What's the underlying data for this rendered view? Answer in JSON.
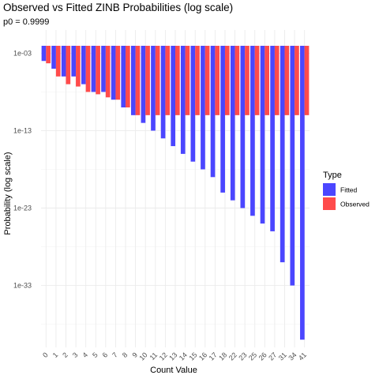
{
  "chart_data": {
    "type": "bar",
    "title": "Observed vs Fitted ZINB Probabilities (log scale)",
    "subtitle": "p0 = 0.9999",
    "xlabel": "Count Value",
    "ylabel": "Probability (log scale)",
    "y_scale": "log10",
    "ylim": [
      1e-41,
      1
    ],
    "y_ticks": [
      0.001,
      1e-13,
      1e-23,
      1e-33
    ],
    "y_tick_labels": [
      "1e-03",
      "1e-13",
      "1e-23",
      "1e-33"
    ],
    "grid": true,
    "legend": {
      "title": "Type",
      "position": "right"
    },
    "categories": [
      "0",
      "1",
      "2",
      "3",
      "4",
      "5",
      "6",
      "7",
      "8",
      "9",
      "10",
      "11",
      "12",
      "13",
      "14",
      "15",
      "16",
      "17",
      "18",
      "22",
      "23",
      "25",
      "26",
      "27",
      "31",
      "34",
      "41"
    ],
    "series": [
      {
        "name": "Fitted",
        "color": "#4B46FF",
        "values": [
          0.0001,
          1e-05,
          1e-06,
          1e-06,
          1e-07,
          1e-08,
          1e-08,
          1e-09,
          1e-10,
          1e-11,
          1e-12,
          1e-13,
          1e-14,
          1e-15,
          1e-16,
          1e-17,
          1e-18,
          1e-19,
          1e-21,
          1e-22,
          1e-23,
          1e-24,
          1e-25,
          1e-26,
          1e-30,
          1e-33,
          1e-40
        ]
      },
      {
        "name": "Observed",
        "color": "#FF4B4B",
        "values": [
          5e-05,
          1e-06,
          1e-07,
          5e-08,
          1e-08,
          5e-09,
          2e-09,
          1e-09,
          1e-10,
          1e-11,
          1e-11,
          1e-11,
          1e-11,
          1e-11,
          1e-11,
          1e-11,
          1e-11,
          1e-11,
          1e-11,
          1e-11,
          1e-11,
          1e-11,
          1e-11,
          1e-11,
          1e-11,
          1e-11,
          1e-11
        ]
      }
    ]
  }
}
